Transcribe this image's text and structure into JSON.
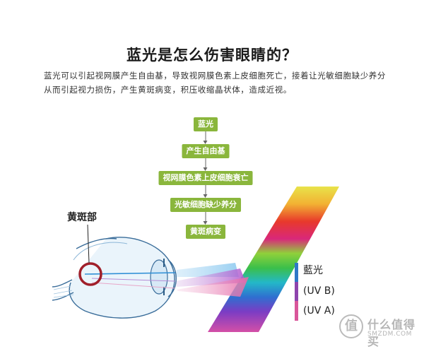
{
  "title": "蓝光是怎么伤害眼睛的？",
  "description": "蓝光可以引起视网膜产生自由基，导致视网膜色素上皮细胞死亡，接着让光敏细胞缺少养分从而引起视力损伤，产生黄斑病变，积压收缩晶状体，造成近视。",
  "flow": {
    "steps": [
      "蓝光",
      "产生自由基",
      "视网膜色素上皮细胞衰亡",
      "光敏细胞缺少养分",
      "黄斑病变"
    ]
  },
  "eye": {
    "macula_label": "黄斑部"
  },
  "legend": {
    "items": [
      {
        "label": "藍光",
        "color": "#2f77c7"
      },
      {
        "label": "(UV B)",
        "color": "#8e44ad"
      },
      {
        "label": "(UV A)",
        "color": "#d9569a"
      }
    ]
  },
  "watermark": {
    "icon": "值",
    "text": "什么值得买",
    "sub": "SMZDM.COM"
  },
  "colors": {
    "step_bg": "#8ab63c",
    "macula_ring": "#a01f2a",
    "beam_blue": "#2f8fd6"
  }
}
